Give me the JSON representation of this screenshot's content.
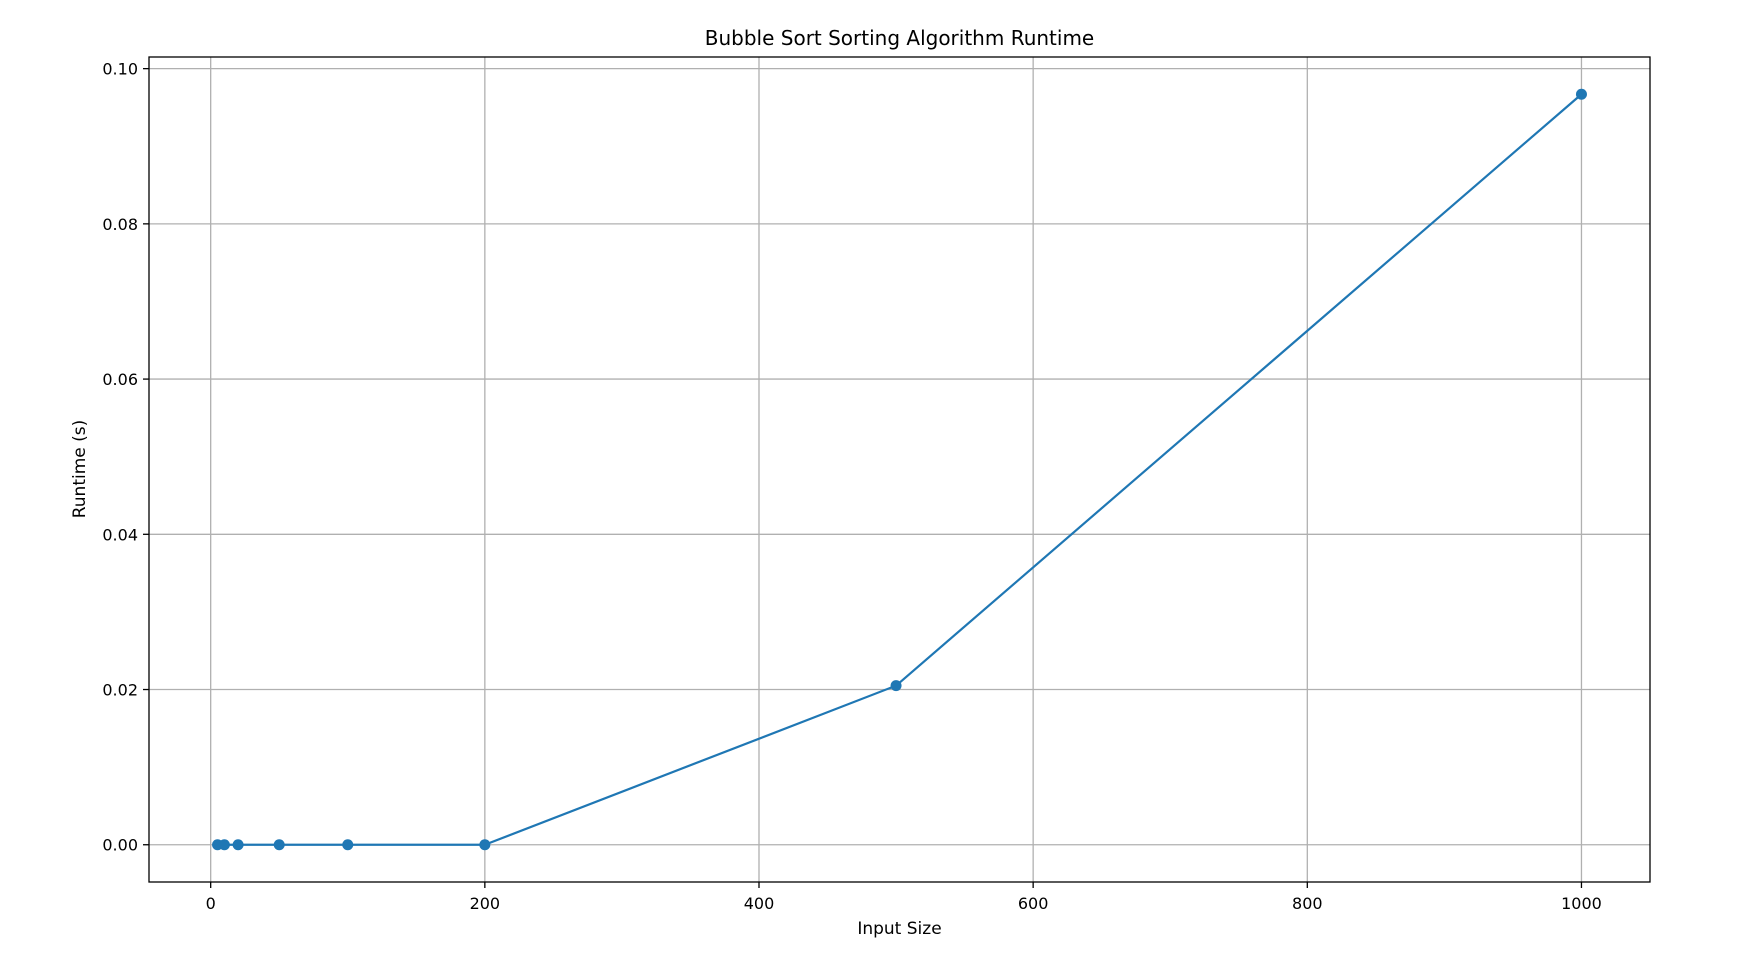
{
  "chart_data": {
    "type": "line",
    "title": "Bubble Sort Sorting Algorithm Runtime",
    "xlabel": "Input Size",
    "ylabel": "Runtime (s)",
    "xlim": [
      -45,
      1050
    ],
    "ylim": [
      -0.0048,
      0.1015
    ],
    "grid": true,
    "x_ticks": [
      0,
      200,
      400,
      600,
      800,
      1000
    ],
    "x_tick_labels": [
      "0",
      "200",
      "400",
      "600",
      "800",
      "1000"
    ],
    "y_ticks": [
      0.0,
      0.02,
      0.04,
      0.06,
      0.08,
      0.1
    ],
    "y_tick_labels": [
      "0.00",
      "0.02",
      "0.04",
      "0.06",
      "0.08",
      "0.10"
    ],
    "series": [
      {
        "color": "#1f77b4",
        "marker": "circle",
        "points": [
          {
            "x": 5,
            "y": 0.0
          },
          {
            "x": 10,
            "y": 0.0
          },
          {
            "x": 20,
            "y": 0.0
          },
          {
            "x": 50,
            "y": 0.0
          },
          {
            "x": 100,
            "y": 0.0
          },
          {
            "x": 200,
            "y": 0.0
          },
          {
            "x": 500,
            "y": 0.0205
          },
          {
            "x": 1000,
            "y": 0.0967
          }
        ]
      }
    ]
  }
}
